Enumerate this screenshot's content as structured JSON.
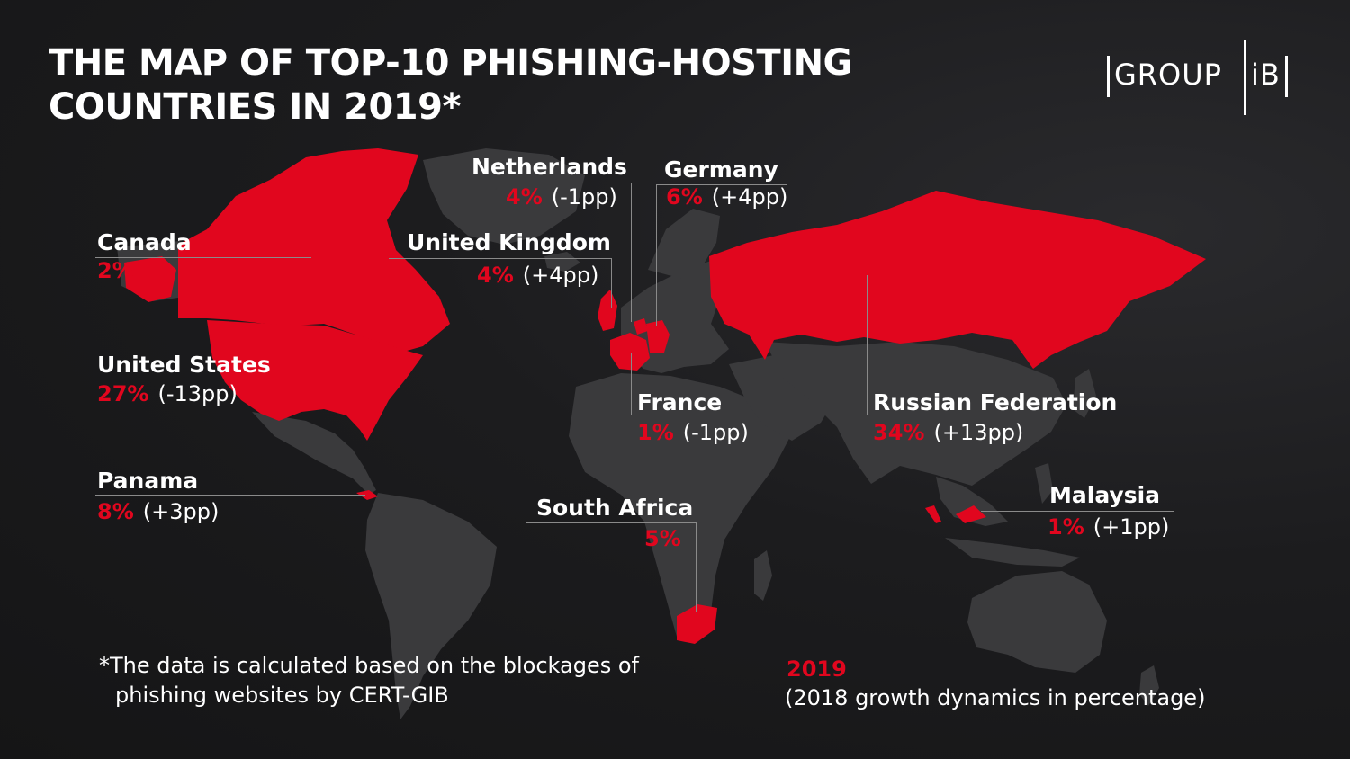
{
  "title": {
    "line1": "THE MAP OF TOP-10 PHISHING-HOSTING",
    "line2": "COUNTRIES IN 2019*"
  },
  "logo": {
    "left_text": "GROUP",
    "right_text": "iB"
  },
  "countries": {
    "canada": {
      "name": "Canada",
      "share": "2%"
    },
    "united_states": {
      "name": "United States",
      "share": "27%",
      "change": "(-13pp)"
    },
    "panama": {
      "name": "Panama",
      "share": "8%",
      "change": "(+3pp)"
    },
    "netherlands": {
      "name": "Netherlands",
      "share": "4%",
      "change": "(-1pp)"
    },
    "united_kingdom": {
      "name": "United Kingdom",
      "share": "4%",
      "change": "(+4pp)"
    },
    "germany": {
      "name": "Germany",
      "share": "6%",
      "change": "(+4pp)"
    },
    "france": {
      "name": "France",
      "share": "1%",
      "change": "(-1pp)"
    },
    "south_africa": {
      "name": "South Africa",
      "share": "5%"
    },
    "russian_federation": {
      "name": "Russian Federation",
      "share": "34%",
      "change": "(+13pp)"
    },
    "malaysia": {
      "name": "Malaysia",
      "share": "1%",
      "change": "(+1pp)"
    }
  },
  "footnote": {
    "line1": "*The data is calculated based on the blockages of",
    "line2": "phishing websites by CERT-GIB"
  },
  "legend": {
    "year": "2019",
    "note": "(2018 growth dynamics in percentage)"
  },
  "colors": {
    "highlight": "#e1061e",
    "land": "#3a3a3c",
    "background": "#1b1b1d",
    "text": "#ffffff",
    "leader_line": "#8a8a8a"
  }
}
